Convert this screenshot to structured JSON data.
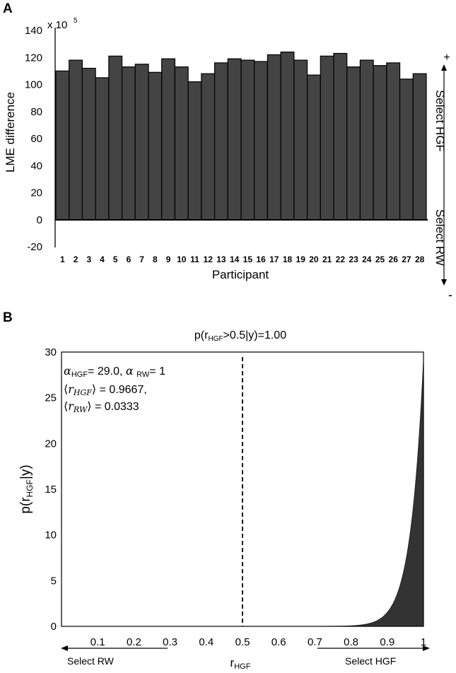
{
  "panels": {
    "a": "A",
    "b": "B"
  },
  "chart_data": [
    {
      "type": "bar",
      "categories": [
        "1",
        "2",
        "3",
        "4",
        "5",
        "6",
        "7",
        "8",
        "9",
        "10",
        "11",
        "12",
        "13",
        "14",
        "15",
        "16",
        "17",
        "18",
        "19",
        "20",
        "21",
        "22",
        "23",
        "24",
        "25",
        "26",
        "27",
        "28"
      ],
      "values": [
        110,
        118,
        112,
        105,
        121,
        113,
        115,
        109,
        119,
        113,
        102,
        108,
        116,
        119,
        118,
        117,
        122,
        124,
        118,
        107,
        121,
        123,
        113,
        118,
        114,
        116,
        104,
        108
      ],
      "scale_label": "x 10",
      "scale_exponent": "5",
      "ylabel": "LME difference",
      "xlabel": "Participant",
      "ylim": [
        -20,
        140
      ],
      "yticks": [
        "140",
        "120",
        "100",
        "80",
        "60",
        "40",
        "20",
        "0",
        "-20"
      ],
      "right_plus": "+",
      "right_minus": "-",
      "right_top": "Select HGF",
      "right_bottom": "Select RW",
      "bar_color": "#444444"
    },
    {
      "type": "area",
      "title_main": "p(r",
      "title_sub": "HGF",
      "title_rest": ">0.5|y)=1.00",
      "ylabel_main": "p(r",
      "ylabel_sub": "HGF",
      "ylabel_rest": "|y)",
      "xlabel_main": "r",
      "xlabel_sub": "HGF",
      "alpha_hgf": 29.0,
      "alpha_rw": 1,
      "ann_alpha": {
        "sym": "α",
        "sub1": "HGF",
        "val1": "= 29.0,",
        "sym2": "α",
        "sub2": "RW",
        "val2": "= 1"
      },
      "ann_rhgf": {
        "open": "⟨",
        "var": "r",
        "sub": "HGF",
        "close": "⟩",
        "val": "= 0.9667,"
      },
      "ann_rrw": {
        "open": "⟨",
        "var": "r",
        "sub": "RW",
        "close": "⟩",
        "val": "= 0.0333"
      },
      "xticks": [
        "0.1",
        "0.2",
        "0.3",
        "0.4",
        "0.5",
        "0.6",
        "0.7",
        "0.8",
        "0.9",
        "1"
      ],
      "yticks": [
        "30",
        "25",
        "20",
        "15",
        "10",
        "5",
        "0"
      ],
      "xlim": [
        0,
        1
      ],
      "ylim": [
        0,
        30
      ],
      "threshold": 0.5,
      "left_arrow_label": "Select RW",
      "right_arrow_label": "Select HGF",
      "fill_color": "#333333"
    }
  ]
}
